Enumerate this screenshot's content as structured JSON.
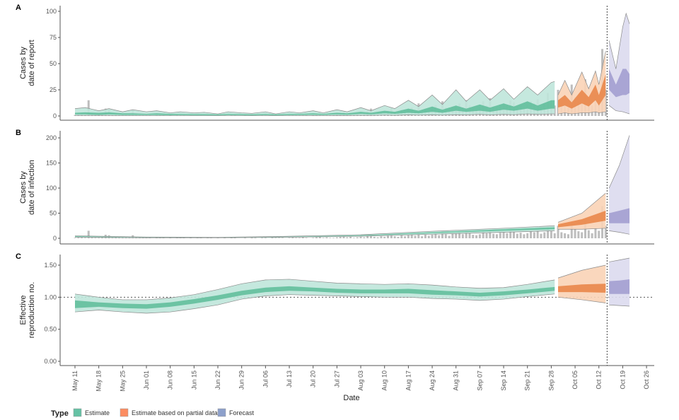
{
  "chart_data": [
    {
      "panel": "A",
      "type": "area",
      "ylabel": [
        "Cases by",
        "date of report"
      ],
      "yticks": [
        0,
        25,
        50,
        75,
        100
      ],
      "ylim": [
        0,
        100
      ],
      "bands_columns": [
        "date",
        "lower90",
        "lower50",
        "upper50",
        "upper90"
      ],
      "estimate": [
        [
          "05-11",
          0.5,
          1.5,
          3,
          7
        ],
        [
          "05-14",
          0.5,
          1.5,
          3.5,
          8
        ],
        [
          "05-18",
          0.5,
          1,
          3,
          5
        ],
        [
          "05-21",
          0.5,
          1.5,
          3.5,
          7
        ],
        [
          "05-25",
          0.3,
          1,
          2.5,
          4
        ],
        [
          "05-28",
          0.3,
          1,
          2.5,
          6
        ],
        [
          "06-01",
          0.3,
          1,
          2,
          4
        ],
        [
          "06-04",
          0.3,
          1,
          2.5,
          5
        ],
        [
          "06-08",
          0.3,
          0.8,
          2,
          3
        ],
        [
          "06-11",
          0.3,
          1,
          2,
          4
        ],
        [
          "06-15",
          0.2,
          0.8,
          1.8,
          3
        ],
        [
          "06-18",
          0.2,
          0.8,
          1.8,
          3.5
        ],
        [
          "06-22",
          0.2,
          0.6,
          1.5,
          2
        ],
        [
          "06-25",
          0.3,
          1,
          2,
          4
        ],
        [
          "06-29",
          0.3,
          0.8,
          1.8,
          3
        ],
        [
          "07-02",
          0.2,
          0.6,
          1.5,
          2.5
        ],
        [
          "07-06",
          0.3,
          1,
          2,
          4
        ],
        [
          "07-09",
          0.2,
          0.6,
          1.5,
          2
        ],
        [
          "07-13",
          0.3,
          1,
          2,
          4
        ],
        [
          "07-16",
          0.3,
          1,
          2,
          3
        ],
        [
          "07-20",
          0.4,
          1.2,
          2.5,
          5
        ],
        [
          "07-23",
          0.3,
          1,
          2,
          3
        ],
        [
          "07-27",
          0.5,
          1.5,
          3,
          6
        ],
        [
          "07-30",
          0.4,
          1.2,
          2.5,
          4
        ],
        [
          "08-03",
          0.6,
          2,
          4,
          8
        ],
        [
          "08-06",
          0.5,
          1.5,
          3,
          5
        ],
        [
          "08-10",
          0.8,
          2.5,
          5,
          10
        ],
        [
          "08-13",
          0.6,
          2,
          4,
          7
        ],
        [
          "08-17",
          1,
          3,
          7,
          15
        ],
        [
          "08-20",
          0.8,
          2.5,
          5,
          9
        ],
        [
          "08-24",
          1,
          4,
          9,
          20
        ],
        [
          "08-27",
          0.8,
          3,
          6,
          11
        ],
        [
          "08-31",
          1.2,
          5,
          10,
          25
        ],
        [
          "09-03",
          1,
          4,
          7,
          14
        ],
        [
          "09-07",
          1.5,
          5,
          11,
          25
        ],
        [
          "09-10",
          1,
          4,
          8,
          15
        ],
        [
          "09-14",
          1.5,
          6,
          12,
          26
        ],
        [
          "09-17",
          1.2,
          5,
          9,
          16
        ],
        [
          "09-21",
          2,
          7,
          14,
          28
        ],
        [
          "09-24",
          1.5,
          5,
          10,
          20
        ],
        [
          "09-28",
          2,
          7,
          15,
          32
        ],
        [
          "09-29",
          2,
          7,
          15,
          33
        ]
      ],
      "partial": [
        [
          "09-30",
          2,
          8,
          15,
          20
        ],
        [
          "10-02",
          3,
          10,
          20,
          34
        ],
        [
          "10-04",
          2,
          7,
          13,
          20
        ],
        [
          "10-07",
          3,
          12,
          25,
          42
        ],
        [
          "10-09",
          3,
          9,
          18,
          26
        ],
        [
          "10-11",
          4,
          15,
          30,
          43
        ],
        [
          "10-12",
          3,
          10,
          20,
          30
        ],
        [
          "10-14",
          4,
          20,
          40,
          62
        ]
      ],
      "forecast": [
        [
          "10-15",
          10,
          25,
          45,
          72
        ],
        [
          "10-17",
          5,
          18,
          30,
          45
        ],
        [
          "10-19",
          4,
          20,
          45,
          85
        ],
        [
          "10-20",
          3,
          20,
          45,
          98
        ],
        [
          "10-21",
          2,
          22,
          40,
          88
        ]
      ],
      "show_bars": true
    },
    {
      "panel": "B",
      "type": "area",
      "ylabel": [
        "Cases by",
        "date of infection"
      ],
      "yticks": [
        0,
        50,
        100,
        150,
        200
      ],
      "ylim": [
        0,
        200
      ],
      "bands_columns": [
        "date",
        "lower90",
        "lower50",
        "upper50",
        "upper90"
      ],
      "estimate": [
        [
          "05-11",
          2,
          3,
          4,
          5
        ],
        [
          "06-01",
          1,
          1.5,
          2,
          2.5
        ],
        [
          "06-22",
          1,
          1.2,
          1.6,
          2
        ],
        [
          "07-13",
          2,
          2.5,
          3,
          4
        ],
        [
          "08-03",
          4,
          5,
          6,
          7
        ],
        [
          "08-24",
          8,
          10,
          12,
          14
        ],
        [
          "09-14",
          12,
          15,
          18,
          20
        ],
        [
          "09-29",
          15,
          18,
          22,
          25
        ]
      ],
      "partial": [
        [
          "09-30",
          18,
          22,
          28,
          32
        ],
        [
          "10-07",
          18,
          27,
          38,
          50
        ],
        [
          "10-14",
          20,
          35,
          55,
          90
        ]
      ],
      "forecast": [
        [
          "10-15",
          15,
          30,
          50,
          100
        ],
        [
          "10-18",
          12,
          30,
          55,
          145
        ],
        [
          "10-21",
          8,
          30,
          60,
          205
        ]
      ],
      "show_bars": true
    },
    {
      "panel": "C",
      "type": "area",
      "ylabel": [
        "Effective",
        "reproduction no."
      ],
      "yticks": [
        "0.00",
        "0.50",
        "1.00",
        "1.50"
      ],
      "ylim": [
        0,
        1.7
      ],
      "reference_line": 1.0,
      "bands_columns": [
        "date",
        "lower90",
        "lower50",
        "upper50",
        "upper90"
      ],
      "estimate": [
        [
          "05-11",
          0.77,
          0.83,
          0.95,
          1.05
        ],
        [
          "05-18",
          0.8,
          0.85,
          0.92,
          1.0
        ],
        [
          "05-25",
          0.77,
          0.83,
          0.9,
          0.96
        ],
        [
          "06-01",
          0.75,
          0.82,
          0.89,
          0.96
        ],
        [
          "06-08",
          0.77,
          0.85,
          0.92,
          0.99
        ],
        [
          "06-15",
          0.82,
          0.9,
          0.97,
          1.04
        ],
        [
          "06-22",
          0.88,
          0.96,
          1.03,
          1.12
        ],
        [
          "06-29",
          0.97,
          1.03,
          1.1,
          1.21
        ],
        [
          "07-06",
          1.02,
          1.08,
          1.15,
          1.27
        ],
        [
          "07-13",
          1.04,
          1.1,
          1.17,
          1.28
        ],
        [
          "07-20",
          1.03,
          1.09,
          1.15,
          1.25
        ],
        [
          "07-27",
          1.02,
          1.07,
          1.13,
          1.22
        ],
        [
          "08-03",
          1.01,
          1.06,
          1.12,
          1.21
        ],
        [
          "08-10",
          1.0,
          1.06,
          1.12,
          1.2
        ],
        [
          "08-17",
          1.0,
          1.06,
          1.13,
          1.21
        ],
        [
          "08-24",
          0.98,
          1.04,
          1.11,
          1.19
        ],
        [
          "08-31",
          0.97,
          1.03,
          1.09,
          1.16
        ],
        [
          "09-07",
          0.95,
          1.01,
          1.07,
          1.14
        ],
        [
          "09-14",
          0.97,
          1.03,
          1.09,
          1.15
        ],
        [
          "09-21",
          1.01,
          1.06,
          1.12,
          1.2
        ],
        [
          "09-29",
          1.05,
          1.1,
          1.16,
          1.27
        ]
      ],
      "partial": [
        [
          "09-30",
          1.0,
          1.08,
          1.17,
          1.3
        ],
        [
          "10-07",
          0.96,
          1.08,
          1.2,
          1.42
        ],
        [
          "10-14",
          0.91,
          1.07,
          1.21,
          1.5
        ]
      ],
      "forecast": [
        [
          "10-15",
          0.88,
          1.05,
          1.25,
          1.55
        ],
        [
          "10-18",
          0.87,
          1.05,
          1.26,
          1.58
        ],
        [
          "10-21",
          0.86,
          1.05,
          1.28,
          1.61
        ]
      ],
      "show_bars": false
    }
  ],
  "observed_cases": {
    "start_date": "05-11",
    "values": [
      1,
      2,
      3,
      1,
      15,
      2,
      1,
      1,
      2,
      7,
      6,
      1,
      2,
      1,
      1,
      1,
      1,
      6,
      2,
      1,
      1,
      1,
      1,
      0,
      2,
      1,
      1,
      0,
      1,
      0,
      2,
      1,
      1,
      0,
      1,
      0,
      1,
      1,
      0,
      1,
      1,
      0,
      1,
      0,
      1,
      0,
      1,
      1,
      0,
      0,
      1,
      0,
      2,
      1,
      0,
      1,
      1,
      0,
      2,
      1,
      1,
      1,
      0,
      1,
      2,
      1,
      1,
      2,
      1,
      0,
      1,
      2,
      3,
      1,
      2,
      1,
      1,
      2,
      3,
      4,
      2,
      3,
      1,
      2,
      3,
      2,
      5,
      7,
      3,
      2,
      4,
      3,
      5,
      8,
      4,
      3,
      6,
      4,
      6,
      8,
      5,
      12,
      4,
      7,
      5,
      7,
      10,
      6,
      14,
      8,
      5,
      9,
      9,
      12,
      8,
      15,
      10,
      7,
      6,
      8,
      14,
      10,
      17,
      9,
      8,
      11,
      12,
      10,
      15,
      13,
      9,
      11,
      8,
      10,
      14,
      12,
      16,
      9,
      12,
      22,
      14,
      10,
      25,
      12,
      10,
      8,
      30,
      18,
      14,
      12,
      35,
      16,
      10,
      20,
      15,
      64,
      25
    ]
  },
  "forecast_start_line": "10-14",
  "x_axis": {
    "label": "Date",
    "ticks": [
      "May 11",
      "May 18",
      "May 25",
      "Jun 01",
      "Jun 08",
      "Jun 15",
      "Jun 22",
      "Jun 29",
      "Jul 06",
      "Jul 13",
      "Jul 20",
      "Jul 27",
      "Aug 03",
      "Aug 10",
      "Aug 17",
      "Aug 24",
      "Aug 31",
      "Sep 07",
      "Sep 14",
      "Sep 21",
      "Sep 28",
      "Oct 05",
      "Oct 12",
      "Oct 19",
      "Oct 26"
    ]
  },
  "legend": {
    "title": "Type",
    "position": "bottom-left",
    "items": [
      {
        "label": "Estimate",
        "color": "#66c2a5"
      },
      {
        "label": "Estimate based on partial data",
        "color": "#fc8d62"
      },
      {
        "label": "Forecast",
        "color": "#8da0cb"
      }
    ]
  },
  "colors": {
    "estimate_90": "#bfe6da",
    "estimate_50": "#62bf9c",
    "partial_90": "#f9d3b6",
    "partial_50": "#e9874a",
    "forecast_90": "#dcdaee",
    "forecast_50": "#a39ed0",
    "bars": "#9a9a9a",
    "band_edge": "#8a8a8a"
  }
}
